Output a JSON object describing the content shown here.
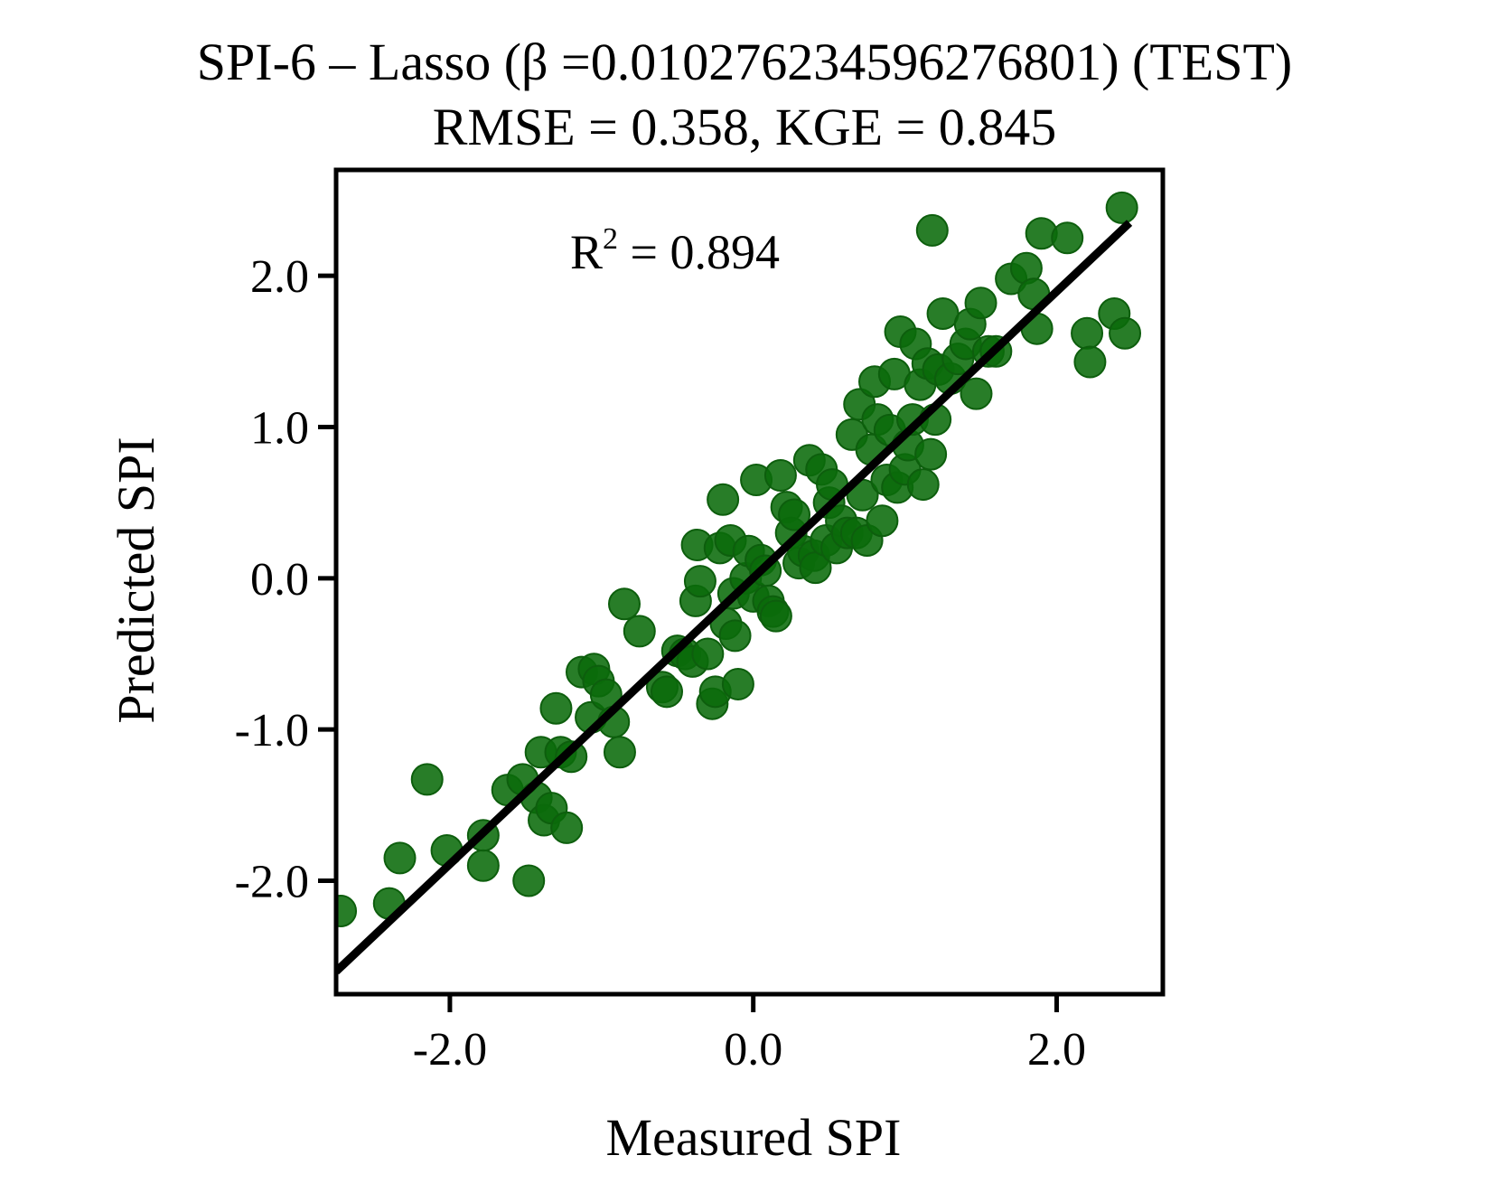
{
  "chart_data": {
    "type": "scatter",
    "title": "SPI-6 – Lasso (β =0.010276234596276801) (TEST)",
    "subtitle": "RMSE = 0.358, KGE = 0.845",
    "xlabel": "Measured SPI",
    "ylabel": "Predicted SPI",
    "annotation": {
      "prefix": "R",
      "sup": "2",
      "text": " = 0.894"
    },
    "xlim": [
      -2.75,
      2.7
    ],
    "ylim": [
      -2.75,
      2.7
    ],
    "xticks": [
      -2.0,
      0.0,
      2.0
    ],
    "xtick_labels": [
      "-2.0",
      "0.0",
      "2.0"
    ],
    "yticks": [
      -2.0,
      -1.0,
      0.0,
      1.0,
      2.0
    ],
    "ytick_labels": [
      "-2.0",
      "-1.0",
      "0.0",
      "1.0",
      "2.0"
    ],
    "grid": false,
    "point_color": "#0a6b0a",
    "line_color": "#000000",
    "fit_line": {
      "x": [
        -2.75,
        2.48
      ],
      "y": [
        -2.6,
        2.35
      ]
    },
    "points": [
      [
        -2.72,
        -2.2
      ],
      [
        -2.4,
        -2.15
      ],
      [
        -2.33,
        -1.85
      ],
      [
        -2.15,
        -1.33
      ],
      [
        -2.02,
        -1.8
      ],
      [
        -1.78,
        -1.9
      ],
      [
        -1.78,
        -1.7
      ],
      [
        -1.62,
        -1.4
      ],
      [
        -1.52,
        -1.33
      ],
      [
        -1.48,
        -2.0
      ],
      [
        -1.43,
        -1.45
      ],
      [
        -1.4,
        -1.15
      ],
      [
        -1.38,
        -1.6
      ],
      [
        -1.33,
        -1.52
      ],
      [
        -1.3,
        -0.86
      ],
      [
        -1.27,
        -1.15
      ],
      [
        -1.23,
        -1.65
      ],
      [
        -1.2,
        -1.18
      ],
      [
        -1.13,
        -0.62
      ],
      [
        -1.07,
        -0.92
      ],
      [
        -1.05,
        -0.6
      ],
      [
        -1.02,
        -0.68
      ],
      [
        -0.97,
        -0.77
      ],
      [
        -0.92,
        -0.95
      ],
      [
        -0.88,
        -1.15
      ],
      [
        -0.85,
        -0.17
      ],
      [
        -0.75,
        -0.35
      ],
      [
        -0.6,
        -0.72
      ],
      [
        -0.57,
        -0.75
      ],
      [
        -0.5,
        -0.48
      ],
      [
        -0.45,
        -0.5
      ],
      [
        -0.4,
        -0.55
      ],
      [
        -0.38,
        -0.15
      ],
      [
        -0.37,
        0.22
      ],
      [
        -0.35,
        -0.02
      ],
      [
        -0.3,
        -0.5
      ],
      [
        -0.27,
        -0.83
      ],
      [
        -0.25,
        -0.75
      ],
      [
        -0.22,
        0.2
      ],
      [
        -0.2,
        0.52
      ],
      [
        -0.18,
        -0.3
      ],
      [
        -0.15,
        0.25
      ],
      [
        -0.13,
        -0.1
      ],
      [
        -0.12,
        -0.38
      ],
      [
        -0.1,
        -0.7
      ],
      [
        -0.05,
        0.0
      ],
      [
        -0.03,
        0.18
      ],
      [
        0.0,
        -0.12
      ],
      [
        0.02,
        0.65
      ],
      [
        0.05,
        0.12
      ],
      [
        0.08,
        0.05
      ],
      [
        0.1,
        -0.15
      ],
      [
        0.13,
        -0.22
      ],
      [
        0.15,
        -0.25
      ],
      [
        0.18,
        0.68
      ],
      [
        0.22,
        0.47
      ],
      [
        0.25,
        0.3
      ],
      [
        0.27,
        0.42
      ],
      [
        0.3,
        0.1
      ],
      [
        0.33,
        0.18
      ],
      [
        0.37,
        0.78
      ],
      [
        0.4,
        0.15
      ],
      [
        0.41,
        0.07
      ],
      [
        0.45,
        0.72
      ],
      [
        0.48,
        0.25
      ],
      [
        0.5,
        0.5
      ],
      [
        0.52,
        0.62
      ],
      [
        0.55,
        0.2
      ],
      [
        0.58,
        0.38
      ],
      [
        0.62,
        0.3
      ],
      [
        0.65,
        0.95
      ],
      [
        0.68,
        0.3
      ],
      [
        0.7,
        1.15
      ],
      [
        0.72,
        0.55
      ],
      [
        0.75,
        0.25
      ],
      [
        0.78,
        0.85
      ],
      [
        0.8,
        1.3
      ],
      [
        0.82,
        1.05
      ],
      [
        0.85,
        0.38
      ],
      [
        0.88,
        0.65
      ],
      [
        0.9,
        0.98
      ],
      [
        0.93,
        1.35
      ],
      [
        0.95,
        0.6
      ],
      [
        0.97,
        1.63
      ],
      [
        1.0,
        0.72
      ],
      [
        1.02,
        0.88
      ],
      [
        1.05,
        1.05
      ],
      [
        1.07,
        1.55
      ],
      [
        1.1,
        1.28
      ],
      [
        1.12,
        0.62
      ],
      [
        1.15,
        1.42
      ],
      [
        1.17,
        0.82
      ],
      [
        1.18,
        2.3
      ],
      [
        1.2,
        1.05
      ],
      [
        1.22,
        1.38
      ],
      [
        1.25,
        1.75
      ],
      [
        1.3,
        1.32
      ],
      [
        1.35,
        1.45
      ],
      [
        1.4,
        1.55
      ],
      [
        1.43,
        1.68
      ],
      [
        1.47,
        1.22
      ],
      [
        1.5,
        1.82
      ],
      [
        1.55,
        1.5
      ],
      [
        1.6,
        1.5
      ],
      [
        1.7,
        1.98
      ],
      [
        1.8,
        2.05
      ],
      [
        1.85,
        1.88
      ],
      [
        1.87,
        1.65
      ],
      [
        1.9,
        2.28
      ],
      [
        2.07,
        2.25
      ],
      [
        2.2,
        1.62
      ],
      [
        2.22,
        1.43
      ],
      [
        2.38,
        1.75
      ],
      [
        2.43,
        2.45
      ],
      [
        2.45,
        1.62
      ]
    ]
  }
}
